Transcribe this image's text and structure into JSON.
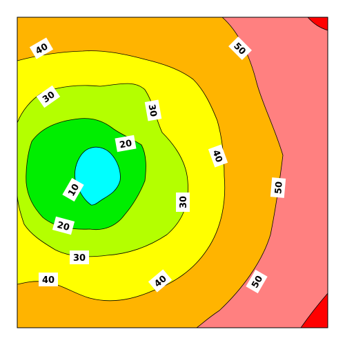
{
  "chart_data": {
    "type": "contour",
    "colors": {
      "band_0_10": "#00ffff",
      "band_10_20": "#00ee00",
      "band_20_30": "#b4ff00",
      "band_30_40": "#ffff00",
      "band_40_50": "#ffb400",
      "band_50_60": "#ff8080",
      "band_60_plus": "#ff0000"
    },
    "levels": [
      10,
      20,
      30,
      40,
      50
    ],
    "contours": [
      {
        "level": 10,
        "labels": [
          {
            "text": "10"
          }
        ]
      },
      {
        "level": 20,
        "labels": [
          {
            "text": "20"
          },
          {
            "text": "20"
          }
        ]
      },
      {
        "level": 30,
        "labels": [
          {
            "text": "30"
          },
          {
            "text": "30"
          },
          {
            "text": "30"
          },
          {
            "text": "30"
          }
        ]
      },
      {
        "level": 40,
        "labels": [
          {
            "text": "40"
          },
          {
            "text": "40"
          },
          {
            "text": "40"
          },
          {
            "text": "40"
          }
        ]
      },
      {
        "level": 50,
        "labels": [
          {
            "text": "50"
          },
          {
            "text": "50"
          },
          {
            "text": "50"
          }
        ]
      }
    ]
  }
}
